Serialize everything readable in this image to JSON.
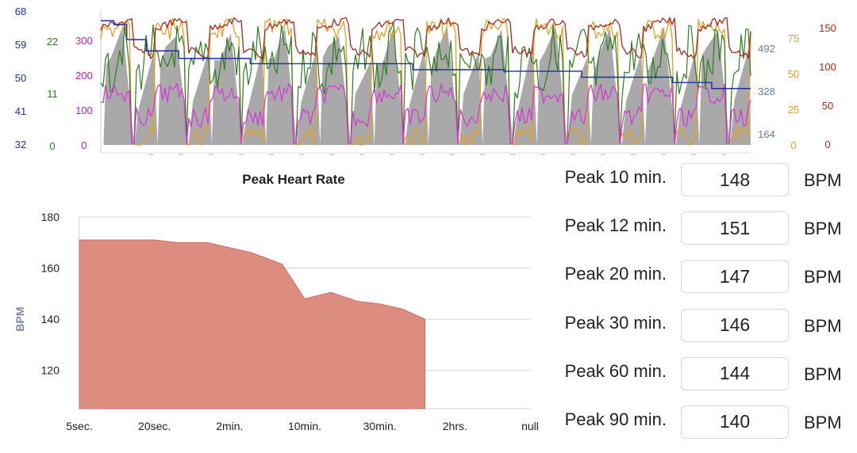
{
  "chart_data": [
    {
      "type": "line",
      "y_axes_left": [
        {
          "color": "#1f2fa0",
          "ticks": [
            "68",
            "59",
            "50",
            "41",
            "32"
          ]
        },
        {
          "color": "#2e7d1e",
          "ticks": [
            "22",
            "11",
            "0"
          ]
        },
        {
          "color": "#c418c4",
          "ticks": [
            "300",
            "200",
            "100",
            "0"
          ]
        }
      ],
      "y_axes_right": [
        {
          "color": "#5f7f9f",
          "ticks": [
            "492",
            "328",
            "164"
          ]
        },
        {
          "color": "#e8a020",
          "ticks": [
            "75",
            "50",
            "25",
            "0"
          ]
        },
        {
          "color": "#b0261b",
          "ticks": [
            "150",
            "100",
            "50",
            "0"
          ]
        }
      ],
      "series": [
        {
          "color": "#9a9a9a"
        },
        {
          "color": "#2e7d1e"
        },
        {
          "color": "#e8a020"
        },
        {
          "color": "#b0261b"
        },
        {
          "color": "#d43bd4"
        },
        {
          "color": "#1f2fa0"
        }
      ],
      "intervals": 12
    },
    {
      "type": "area",
      "title": "Peak Heart Rate",
      "ylabel": "BPM",
      "color": "#d98375",
      "ylim": [
        105,
        180
      ],
      "yticks": [
        120,
        140,
        160,
        180
      ],
      "x_tick_labels": [
        "5sec.",
        "20sec.",
        "2min.",
        "10min.",
        "30min.",
        "2hrs.",
        "null"
      ],
      "x_tick_pos": [
        0,
        1,
        2,
        3,
        4,
        5,
        6
      ],
      "points": [
        {
          "x": 0,
          "y": 171
        },
        {
          "x": 0.5,
          "y": 171
        },
        {
          "x": 1,
          "y": 171
        },
        {
          "x": 1.3,
          "y": 170
        },
        {
          "x": 1.7,
          "y": 170
        },
        {
          "x": 2,
          "y": 168
        },
        {
          "x": 2.3,
          "y": 166
        },
        {
          "x": 2.7,
          "y": 161.5
        },
        {
          "x": 3,
          "y": 148
        },
        {
          "x": 3.35,
          "y": 150.5
        },
        {
          "x": 3.7,
          "y": 147
        },
        {
          "x": 4,
          "y": 146
        },
        {
          "x": 4.3,
          "y": 144
        },
        {
          "x": 4.6,
          "y": 140
        }
      ]
    }
  ],
  "peaks": [
    {
      "label": "Peak 10 min.",
      "value": "148",
      "unit": "BPM"
    },
    {
      "label": "Peak 12 min.",
      "value": "151",
      "unit": "BPM"
    },
    {
      "label": "Peak 20 min.",
      "value": "147",
      "unit": "BPM"
    },
    {
      "label": "Peak 30 min.",
      "value": "146",
      "unit": "BPM"
    },
    {
      "label": "Peak 60 min.",
      "value": "144",
      "unit": "BPM"
    },
    {
      "label": "Peak 90 min.",
      "value": "140",
      "unit": "BPM"
    }
  ]
}
